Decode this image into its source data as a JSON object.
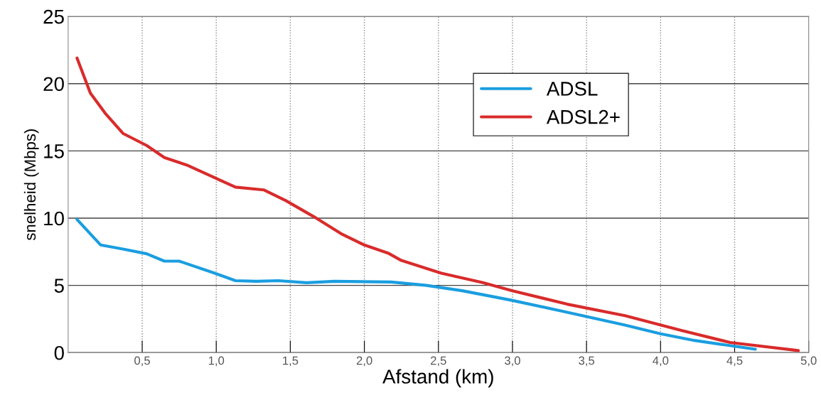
{
  "chart_data": {
    "type": "line",
    "xlabel": "Afstand (km)",
    "ylabel": "snelheid (Mbps)",
    "xlim": [
      0,
      5.0
    ],
    "ylim": [
      0,
      25
    ],
    "xticks": [
      {
        "value": 0.5,
        "label": "0,5"
      },
      {
        "value": 1.0,
        "label": "1,0"
      },
      {
        "value": 1.5,
        "label": "1,5"
      },
      {
        "value": 2.0,
        "label": "2,0"
      },
      {
        "value": 2.5,
        "label": "2,5"
      },
      {
        "value": 3.0,
        "label": "3,0"
      },
      {
        "value": 3.5,
        "label": "3,5"
      },
      {
        "value": 4.0,
        "label": "4,0"
      },
      {
        "value": 4.5,
        "label": "4,5"
      },
      {
        "value": 5.0,
        "label": "5,0"
      }
    ],
    "yticks": [
      0,
      5,
      10,
      15,
      20,
      25
    ],
    "grid": true,
    "legend": "top right",
    "marker": "none",
    "line_style": "solid",
    "series": [
      {
        "name": "ADSL",
        "color": "#1a9ee0",
        "x": [
          0.06,
          0.22,
          0.37,
          0.53,
          0.65,
          0.75,
          0.99,
          1.13,
          1.27,
          1.42,
          1.61,
          1.8,
          2.18,
          2.42,
          2.66,
          2.99,
          3.37,
          3.76,
          4.0,
          4.23,
          4.64
        ],
        "values": [
          9.9,
          8.0,
          7.7,
          7.35,
          6.8,
          6.8,
          5.9,
          5.35,
          5.3,
          5.35,
          5.2,
          5.3,
          5.25,
          5.0,
          4.6,
          3.9,
          3.0,
          2.05,
          1.4,
          0.9,
          0.25
        ]
      },
      {
        "name": "ADSL2+",
        "color": "#d92b2b",
        "x": [
          0.06,
          0.15,
          0.25,
          0.37,
          0.53,
          0.65,
          0.8,
          0.99,
          1.13,
          1.32,
          1.47,
          1.66,
          1.85,
          2.0,
          2.16,
          2.25,
          2.52,
          2.8,
          3.0,
          3.37,
          3.76,
          4.14,
          4.47,
          4.93
        ],
        "values": [
          21.9,
          19.3,
          17.8,
          16.3,
          15.4,
          14.5,
          13.95,
          13.0,
          12.3,
          12.1,
          11.3,
          10.1,
          8.8,
          8.0,
          7.4,
          6.85,
          5.9,
          5.2,
          4.6,
          3.6,
          2.75,
          1.65,
          0.75,
          0.15
        ]
      }
    ]
  }
}
